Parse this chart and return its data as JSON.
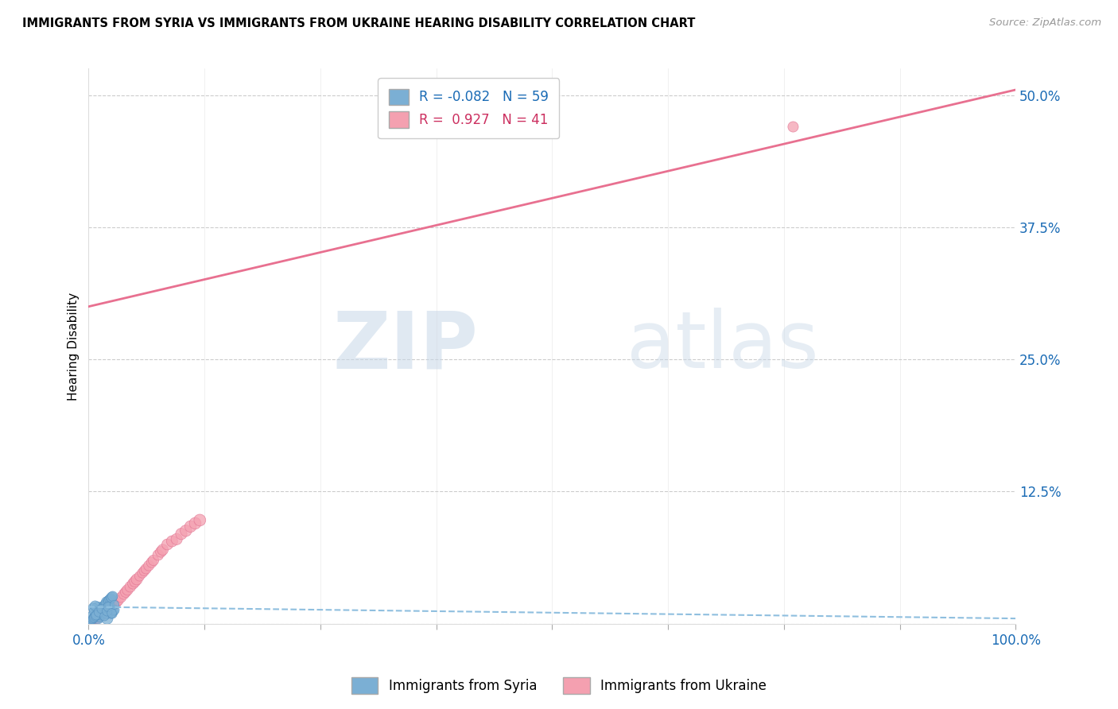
{
  "title": "IMMIGRANTS FROM SYRIA VS IMMIGRANTS FROM UKRAINE HEARING DISABILITY CORRELATION CHART",
  "source_text": "Source: ZipAtlas.com",
  "ylabel": "Hearing Disability",
  "watermark_zip": "ZIP",
  "watermark_atlas": "atlas",
  "xlim": [
    0.0,
    1.0
  ],
  "ylim": [
    0.0,
    0.525
  ],
  "xticks": [
    0.0,
    0.125,
    0.25,
    0.375,
    0.5,
    0.625,
    0.75,
    0.875,
    1.0
  ],
  "xtick_labels": [
    "0.0%",
    "",
    "",
    "",
    "",
    "",
    "",
    "",
    "100.0%"
  ],
  "ytick_vals": [
    0.0,
    0.125,
    0.25,
    0.375,
    0.5
  ],
  "ytick_labels": [
    "",
    "12.5%",
    "25.0%",
    "37.5%",
    "50.0%"
  ],
  "grid_color": "#cccccc",
  "syria_color": "#7bafd4",
  "ukraine_color": "#f4a0b0",
  "syria_edge_color": "#5590c0",
  "ukraine_edge_color": "#e07090",
  "syria_R": -0.082,
  "syria_N": 59,
  "ukraine_R": 0.927,
  "ukraine_N": 41,
  "syria_trend_color": "#8fbfdf",
  "ukraine_trend_color": "#e87090",
  "ukraine_trend_x0": 0.0,
  "ukraine_trend_y0": 0.3,
  "ukraine_trend_x1": 1.0,
  "ukraine_trend_y1": 0.505,
  "syria_trend_x0": 0.0,
  "syria_trend_y0": 0.016,
  "syria_trend_x1": 1.0,
  "syria_trend_y1": 0.005,
  "syria_points_x": [
    0.005,
    0.007,
    0.008,
    0.009,
    0.01,
    0.01,
    0.01,
    0.011,
    0.012,
    0.012,
    0.013,
    0.013,
    0.014,
    0.015,
    0.015,
    0.016,
    0.016,
    0.017,
    0.018,
    0.018,
    0.019,
    0.019,
    0.02,
    0.02,
    0.02,
    0.021,
    0.021,
    0.022,
    0.022,
    0.023,
    0.023,
    0.024,
    0.025,
    0.025,
    0.026,
    0.003,
    0.004,
    0.004,
    0.005,
    0.006,
    0.006,
    0.007,
    0.008,
    0.009,
    0.027,
    0.028,
    0.003,
    0.004,
    0.005,
    0.006,
    0.007,
    0.008,
    0.011,
    0.014,
    0.017,
    0.02,
    0.021,
    0.025,
    0.028
  ],
  "syria_points_y": [
    0.005,
    0.007,
    0.008,
    0.01,
    0.005,
    0.01,
    0.015,
    0.011,
    0.012,
    0.006,
    0.013,
    0.008,
    0.014,
    0.015,
    0.009,
    0.016,
    0.01,
    0.017,
    0.018,
    0.012,
    0.019,
    0.013,
    0.005,
    0.01,
    0.02,
    0.021,
    0.014,
    0.022,
    0.016,
    0.023,
    0.017,
    0.024,
    0.01,
    0.025,
    0.026,
    0.003,
    0.004,
    0.008,
    0.015,
    0.006,
    0.012,
    0.017,
    0.008,
    0.009,
    0.012,
    0.013,
    0.003,
    0.004,
    0.005,
    0.006,
    0.007,
    0.008,
    0.011,
    0.014,
    0.007,
    0.012,
    0.016,
    0.01,
    0.018
  ],
  "ukraine_points_x": [
    0.005,
    0.008,
    0.01,
    0.012,
    0.015,
    0.018,
    0.02,
    0.022,
    0.025,
    0.028,
    0.03,
    0.032,
    0.035,
    0.038,
    0.04,
    0.042,
    0.045,
    0.048,
    0.05,
    0.052,
    0.055,
    0.058,
    0.06,
    0.062,
    0.065,
    0.068,
    0.07,
    0.075,
    0.078,
    0.08,
    0.085,
    0.09,
    0.095,
    0.1,
    0.105,
    0.11,
    0.115,
    0.12,
    0.009,
    0.013,
    0.76
  ],
  "ukraine_points_y": [
    0.003,
    0.005,
    0.006,
    0.007,
    0.008,
    0.01,
    0.012,
    0.013,
    0.015,
    0.018,
    0.02,
    0.022,
    0.025,
    0.028,
    0.03,
    0.032,
    0.035,
    0.038,
    0.04,
    0.042,
    0.045,
    0.048,
    0.05,
    0.052,
    0.055,
    0.058,
    0.06,
    0.065,
    0.068,
    0.07,
    0.075,
    0.078,
    0.08,
    0.085,
    0.088,
    0.092,
    0.095,
    0.098,
    0.004,
    0.007,
    0.47
  ],
  "syria_sizes": [
    80,
    90,
    85,
    70,
    100,
    110,
    120,
    95,
    80,
    75,
    85,
    70,
    80,
    90,
    75,
    85,
    70,
    80,
    90,
    75,
    85,
    70,
    110,
    100,
    120,
    85,
    70,
    90,
    75,
    85,
    70,
    80,
    100,
    90,
    80,
    60,
    65,
    70,
    80,
    65,
    75,
    80,
    70,
    65,
    70,
    75,
    55,
    60,
    65,
    70,
    65,
    70,
    75,
    70,
    65,
    80,
    75,
    70,
    65
  ],
  "ukraine_sizes": [
    55,
    60,
    65,
    70,
    72,
    74,
    76,
    78,
    80,
    82,
    84,
    86,
    88,
    90,
    92,
    94,
    96,
    98,
    100,
    102,
    80,
    82,
    84,
    86,
    88,
    90,
    92,
    94,
    96,
    98,
    100,
    102,
    104,
    106,
    108,
    110,
    112,
    114,
    58,
    62,
    90
  ]
}
